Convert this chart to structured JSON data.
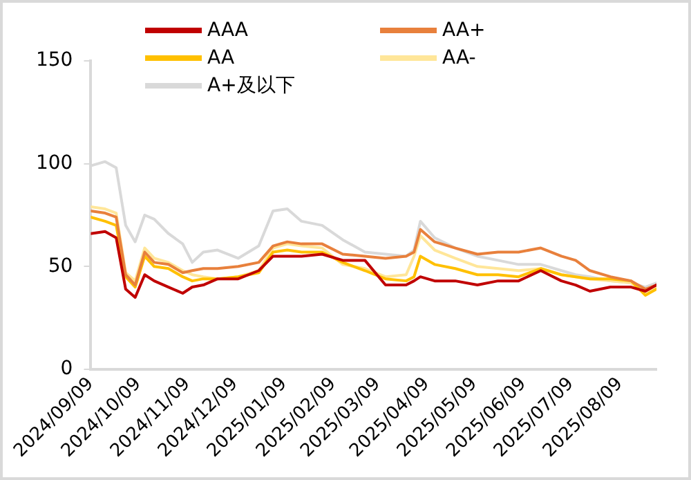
{
  "chart_data": {
    "type": "line",
    "x": [
      "2024-09-09",
      "2024-09-18",
      "2024-09-25",
      "2024-10-01",
      "2024-10-07",
      "2024-10-13",
      "2024-10-19",
      "2024-10-28",
      "2024-11-06",
      "2024-11-12",
      "2024-11-19",
      "2024-11-28",
      "2024-12-11",
      "2024-12-24",
      "2025-01-02",
      "2025-01-11",
      "2025-01-20",
      "2025-02-02",
      "2025-02-15",
      "2025-03-01",
      "2025-03-14",
      "2025-03-27",
      "2025-04-01",
      "2025-04-05",
      "2025-04-14",
      "2025-04-27",
      "2025-05-11",
      "2025-05-24",
      "2025-06-06",
      "2025-06-20",
      "2025-07-03",
      "2025-07-12",
      "2025-07-21",
      "2025-08-03",
      "2025-08-16",
      "2025-08-25",
      "2025-09-01"
    ],
    "series": [
      {
        "name": "AAA",
        "color": "#c00000",
        "values": [
          66,
          67,
          64,
          39,
          35,
          46,
          43,
          40,
          37,
          40,
          41,
          44,
          44,
          48,
          55,
          55,
          55,
          56,
          53,
          53,
          41,
          41,
          43,
          45,
          43,
          43,
          41,
          43,
          43,
          48,
          43,
          41,
          38,
          40,
          40,
          38,
          41
        ]
      },
      {
        "name": "AA+",
        "color": "#e8803c",
        "values": [
          77,
          76,
          74,
          46,
          41,
          57,
          52,
          51,
          47,
          48,
          49,
          49,
          50,
          52,
          60,
          62,
          61,
          61,
          56,
          55,
          54,
          55,
          57,
          68,
          62,
          59,
          56,
          57,
          57,
          59,
          55,
          53,
          48,
          45,
          43,
          39,
          41
        ]
      },
      {
        "name": "AA",
        "color": "#ffc000",
        "values": [
          74,
          72,
          70,
          45,
          40,
          55,
          50,
          49,
          45,
          43,
          44,
          44,
          45,
          47,
          57,
          58,
          57,
          57,
          52,
          48,
          44,
          43,
          45,
          55,
          51,
          49,
          46,
          46,
          45,
          49,
          46,
          45,
          44,
          44,
          43,
          36,
          39
        ]
      },
      {
        "name": "AA-",
        "color": "#ffe699",
        "values": [
          79,
          78,
          76,
          47,
          43,
          59,
          54,
          52,
          48,
          46,
          45,
          44,
          45,
          48,
          59,
          61,
          60,
          59,
          51,
          49,
          45,
          46,
          55,
          65,
          58,
          54,
          50,
          49,
          48,
          49,
          46,
          45,
          44,
          43,
          42,
          37,
          40
        ]
      },
      {
        "name": "A+及以下",
        "color": "#d9d9d9",
        "values": [
          99,
          101,
          98,
          70,
          62,
          75,
          73,
          66,
          61,
          52,
          57,
          58,
          54,
          60,
          77,
          78,
          72,
          70,
          63,
          57,
          56,
          55,
          58,
          72,
          64,
          59,
          55,
          53,
          51,
          51,
          48,
          46,
          45,
          43,
          42,
          40,
          42
        ]
      }
    ],
    "xlim": [
      "2024-09-09",
      "2025-09-01"
    ],
    "xticks": [
      {
        "value": "2024-09-09",
        "label": "2024/09/09"
      },
      {
        "value": "2024-10-09",
        "label": "2024/10/09"
      },
      {
        "value": "2024-11-09",
        "label": "2024/11/09"
      },
      {
        "value": "2024-12-09",
        "label": "2024/12/09"
      },
      {
        "value": "2025-01-09",
        "label": "2025/01/09"
      },
      {
        "value": "2025-02-09",
        "label": "2025/02/09"
      },
      {
        "value": "2025-03-09",
        "label": "2025/03/09"
      },
      {
        "value": "2025-04-09",
        "label": "2025/04/09"
      },
      {
        "value": "2025-05-09",
        "label": "2025/05/09"
      },
      {
        "value": "2025-06-09",
        "label": "2025/06/09"
      },
      {
        "value": "2025-07-09",
        "label": "2025/07/09"
      },
      {
        "value": "2025-08-09",
        "label": "2025/08/09"
      }
    ],
    "ylim": [
      0,
      150
    ],
    "yticks": [
      0,
      50,
      100,
      150
    ],
    "grid": false,
    "legend": "top",
    "marker": "none",
    "line_style": "solid"
  }
}
